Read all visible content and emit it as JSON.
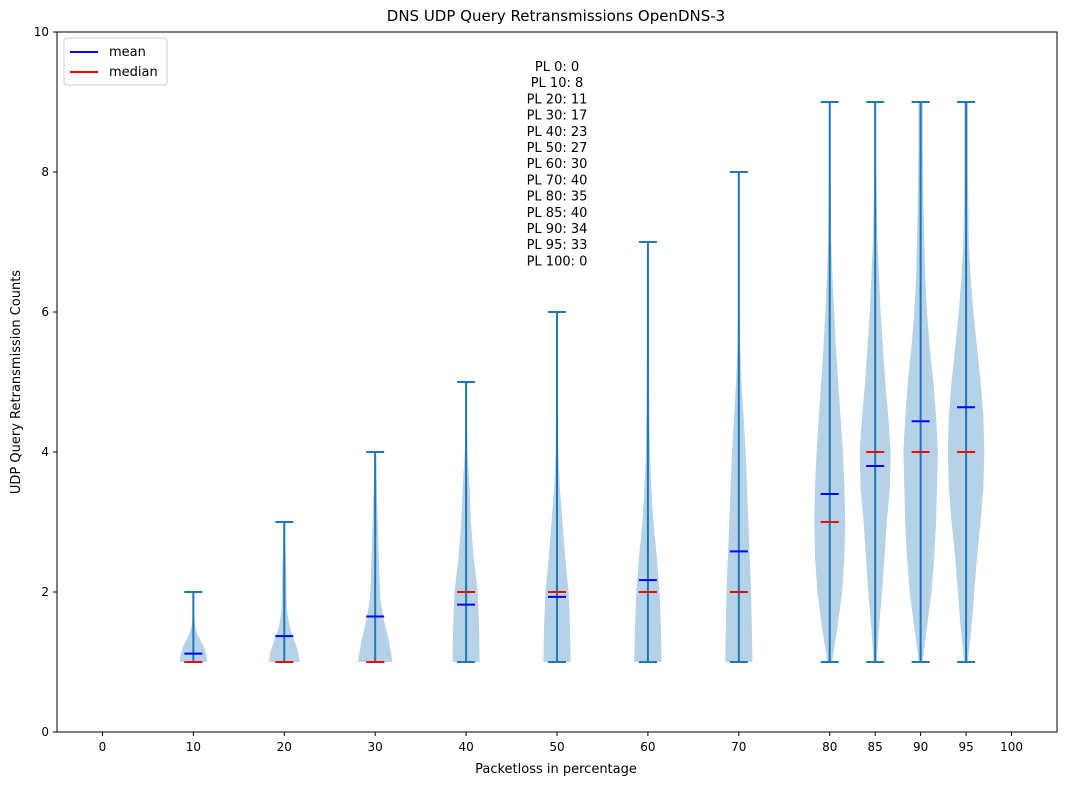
{
  "chart_data": {
    "type": "violin",
    "title": "DNS UDP Query Retransmissions OpenDNS-3",
    "xlabel": "Packetloss in percentage",
    "ylabel": "UDP Query Retransmission Counts",
    "ylim": [
      0,
      10
    ],
    "x_ticks": [
      0,
      10,
      20,
      30,
      40,
      50,
      60,
      70,
      80,
      85,
      90,
      95,
      100
    ],
    "y_ticks": [
      0,
      2,
      4,
      6,
      8,
      10
    ],
    "legend": {
      "position": "top-left",
      "entries": [
        {
          "label": "mean",
          "color": "#0000ff"
        },
        {
          "label": "median",
          "color": "#ff0000"
        }
      ]
    },
    "annotation": {
      "color": "#ff0000",
      "lines": [
        "PL 0: 0",
        "PL 10: 8",
        "PL 20: 11",
        "PL 30: 17",
        "PL 40: 23",
        "PL 50: 27",
        "PL 60: 30",
        "PL 70: 40",
        "PL 80: 35",
        "PL 85: 40",
        "PL 90: 34",
        "PL 95: 33",
        "PL 100: 0"
      ]
    },
    "violins": [
      {
        "x": 10,
        "min": 1,
        "max": 2,
        "mean": 1.12,
        "median": 1,
        "width": 0.75,
        "profile": [
          [
            1.0,
            1.0
          ],
          [
            1.1,
            0.95
          ],
          [
            1.2,
            0.8
          ],
          [
            1.3,
            0.55
          ],
          [
            1.4,
            0.3
          ],
          [
            1.5,
            0.15
          ],
          [
            1.6,
            0.08
          ],
          [
            1.75,
            0.05
          ],
          [
            1.9,
            0.05
          ],
          [
            2.0,
            0.04
          ]
        ]
      },
      {
        "x": 20,
        "min": 1,
        "max": 3,
        "mean": 1.37,
        "median": 1,
        "width": 0.85,
        "profile": [
          [
            1.0,
            1.0
          ],
          [
            1.15,
            0.9
          ],
          [
            1.3,
            0.65
          ],
          [
            1.5,
            0.35
          ],
          [
            1.7,
            0.2
          ],
          [
            1.9,
            0.15
          ],
          [
            2.1,
            0.14
          ],
          [
            2.3,
            0.13
          ],
          [
            2.5,
            0.1
          ],
          [
            2.7,
            0.07
          ],
          [
            3.0,
            0.05
          ]
        ]
      },
      {
        "x": 30,
        "min": 1,
        "max": 4,
        "mean": 1.65,
        "median": 1,
        "width": 0.95,
        "profile": [
          [
            1.0,
            1.0
          ],
          [
            1.3,
            0.8
          ],
          [
            1.6,
            0.5
          ],
          [
            1.9,
            0.3
          ],
          [
            2.2,
            0.25
          ],
          [
            2.6,
            0.2
          ],
          [
            3.0,
            0.15
          ],
          [
            3.4,
            0.1
          ],
          [
            3.7,
            0.07
          ],
          [
            4.0,
            0.05
          ]
        ]
      },
      {
        "x": 40,
        "min": 1,
        "max": 5,
        "mean": 1.82,
        "median": 2,
        "width": 0.75,
        "profile": [
          [
            1.0,
            1.0
          ],
          [
            1.5,
            0.95
          ],
          [
            2.0,
            0.85
          ],
          [
            2.5,
            0.55
          ],
          [
            3.0,
            0.35
          ],
          [
            3.5,
            0.25
          ],
          [
            4.0,
            0.1
          ],
          [
            4.5,
            0.05
          ],
          [
            5.0,
            0.03
          ]
        ]
      },
      {
        "x": 50,
        "min": 1,
        "max": 6,
        "mean": 1.93,
        "median": 2,
        "width": 0.75,
        "profile": [
          [
            1.0,
            1.0
          ],
          [
            1.5,
            0.95
          ],
          [
            2.0,
            0.85
          ],
          [
            2.5,
            0.6
          ],
          [
            3.0,
            0.4
          ],
          [
            3.5,
            0.2
          ],
          [
            4.0,
            0.1
          ],
          [
            5.0,
            0.06
          ],
          [
            6.0,
            0.04
          ]
        ]
      },
      {
        "x": 60,
        "min": 1,
        "max": 7,
        "mean": 2.17,
        "median": 2,
        "width": 0.75,
        "profile": [
          [
            1.0,
            1.0
          ],
          [
            1.5,
            0.95
          ],
          [
            2.0,
            0.85
          ],
          [
            2.5,
            0.65
          ],
          [
            3.0,
            0.4
          ],
          [
            3.5,
            0.25
          ],
          [
            4.0,
            0.15
          ],
          [
            5.0,
            0.08
          ],
          [
            6.0,
            0.05
          ],
          [
            7.0,
            0.04
          ]
        ]
      },
      {
        "x": 70,
        "min": 1,
        "max": 8,
        "mean": 2.58,
        "median": 2,
        "width": 0.75,
        "profile": [
          [
            1.0,
            1.0
          ],
          [
            1.5,
            0.95
          ],
          [
            2.0,
            0.9
          ],
          [
            2.5,
            0.8
          ],
          [
            3.0,
            0.7
          ],
          [
            3.5,
            0.6
          ],
          [
            4.0,
            0.5
          ],
          [
            4.5,
            0.35
          ],
          [
            5.0,
            0.2
          ],
          [
            5.5,
            0.1
          ],
          [
            6.0,
            0.06
          ],
          [
            7.0,
            0.04
          ],
          [
            8.0,
            0.03
          ]
        ]
      },
      {
        "x": 80,
        "min": 1,
        "max": 9,
        "mean": 3.4,
        "median": 3,
        "width": 0.85,
        "profile": [
          [
            1.0,
            0.15
          ],
          [
            1.5,
            0.5
          ],
          [
            2.0,
            0.8
          ],
          [
            2.5,
            0.95
          ],
          [
            3.0,
            1.0
          ],
          [
            3.5,
            0.95
          ],
          [
            4.0,
            0.85
          ],
          [
            4.5,
            0.7
          ],
          [
            5.0,
            0.55
          ],
          [
            5.5,
            0.4
          ],
          [
            6.0,
            0.28
          ],
          [
            6.5,
            0.18
          ],
          [
            7.0,
            0.1
          ],
          [
            8.0,
            0.05
          ],
          [
            9.0,
            0.05
          ]
        ]
      },
      {
        "x": 85,
        "min": 1,
        "max": 9,
        "mean": 3.8,
        "median": 4,
        "width": 0.85,
        "profile": [
          [
            1.0,
            0.1
          ],
          [
            1.5,
            0.25
          ],
          [
            2.0,
            0.45
          ],
          [
            2.5,
            0.6
          ],
          [
            3.0,
            0.75
          ],
          [
            3.5,
            0.95
          ],
          [
            4.0,
            1.0
          ],
          [
            4.5,
            0.85
          ],
          [
            5.0,
            0.65
          ],
          [
            5.5,
            0.5
          ],
          [
            6.0,
            0.35
          ],
          [
            7.0,
            0.15
          ],
          [
            8.0,
            0.06
          ],
          [
            9.0,
            0.05
          ]
        ]
      },
      {
        "x": 90,
        "min": 1,
        "max": 9,
        "mean": 4.44,
        "median": 4,
        "width": 1.0,
        "profile": [
          [
            1.0,
            0.1
          ],
          [
            1.5,
            0.35
          ],
          [
            2.0,
            0.6
          ],
          [
            2.5,
            0.75
          ],
          [
            3.0,
            0.85
          ],
          [
            3.5,
            0.9
          ],
          [
            4.0,
            0.95
          ],
          [
            4.5,
            0.85
          ],
          [
            5.0,
            0.7
          ],
          [
            5.5,
            0.5
          ],
          [
            6.0,
            0.35
          ],
          [
            6.5,
            0.25
          ],
          [
            7.0,
            0.2
          ],
          [
            7.5,
            0.16
          ],
          [
            8.0,
            0.14
          ],
          [
            8.5,
            0.12
          ],
          [
            9.0,
            0.12
          ]
        ]
      },
      {
        "x": 95,
        "min": 1,
        "max": 9,
        "mean": 4.64,
        "median": 4,
        "width": 1.0,
        "profile": [
          [
            1.0,
            0.1
          ],
          [
            1.5,
            0.3
          ],
          [
            2.0,
            0.45
          ],
          [
            2.5,
            0.6
          ],
          [
            3.0,
            0.8
          ],
          [
            3.5,
            0.95
          ],
          [
            4.0,
            1.0
          ],
          [
            4.5,
            0.95
          ],
          [
            5.0,
            0.8
          ],
          [
            5.5,
            0.6
          ],
          [
            6.0,
            0.4
          ],
          [
            6.5,
            0.25
          ],
          [
            7.0,
            0.15
          ],
          [
            8.0,
            0.1
          ],
          [
            9.0,
            0.1
          ]
        ]
      }
    ]
  },
  "colors": {
    "body": "#b5d2e6",
    "lines": "#1f77b4",
    "mean": "#0000ff",
    "median": "#ff0000"
  }
}
